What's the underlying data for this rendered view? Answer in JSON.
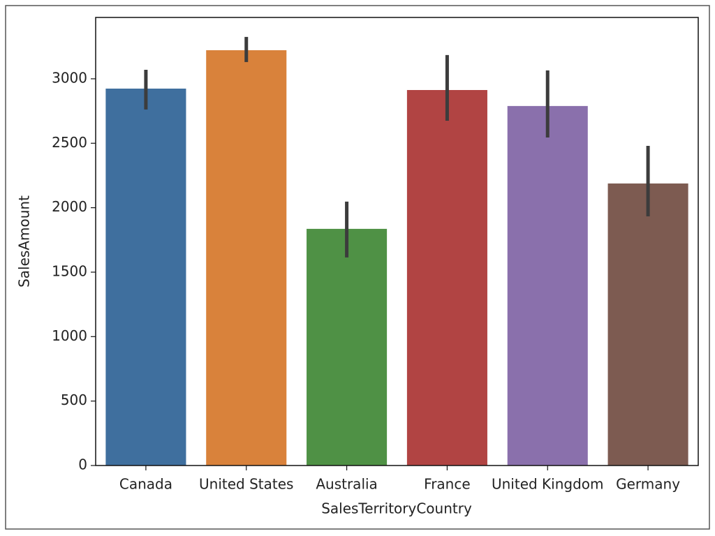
{
  "chart_data": {
    "type": "bar",
    "x_label": "SalesTerritoryCountry",
    "y_label": "SalesAmount",
    "categories": [
      "Canada",
      "United States",
      "Australia",
      "France",
      "United Kingdom",
      "Germany"
    ],
    "values": [
      2924,
      3222,
      1836,
      2913,
      2789,
      2188
    ],
    "ci_low": [
      2762,
      3130,
      1614,
      2675,
      2545,
      1933
    ],
    "ci_high": [
      3070,
      3325,
      2047,
      3184,
      3065,
      2480
    ],
    "colors": [
      "#3f6f9e",
      "#d9823b",
      "#4f9145",
      "#b14443",
      "#8a70ac",
      "#7d5b51"
    ],
    "error_color": "#3c3c3c",
    "ylim": [
      0,
      3476
    ],
    "yticks": [
      0,
      500,
      1000,
      1500,
      2000,
      2500,
      3000
    ],
    "grid": false
  }
}
